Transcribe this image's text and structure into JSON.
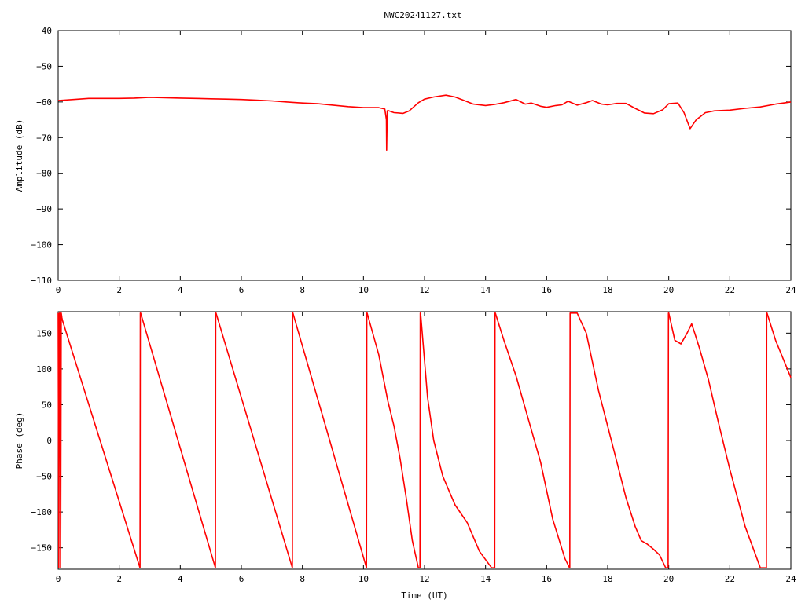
{
  "window": {
    "title": "NWC20241127.txt"
  },
  "chart_data": [
    {
      "type": "line",
      "title": "NWC20241127.txt",
      "xlabel": "",
      "ylabel": "Amplitude (dB)",
      "xlim": [
        0,
        24
      ],
      "ylim": [
        -110,
        -40
      ],
      "x_ticks": [
        0,
        2,
        4,
        6,
        8,
        10,
        12,
        14,
        16,
        18,
        20,
        22,
        24
      ],
      "y_ticks": [
        -40,
        -50,
        -60,
        -70,
        -80,
        -90,
        -100,
        -110
      ],
      "grid": false,
      "series_color": "#ff0000",
      "series": [
        {
          "x": [
            0,
            0.5,
            1,
            1.5,
            2,
            2.5,
            3,
            3.5,
            4,
            4.5,
            5,
            5.5,
            6,
            6.5,
            7,
            7.5,
            8,
            8.5,
            9,
            9.5,
            10,
            10.5,
            10.7,
            10.75,
            10.76,
            10.78,
            10.8,
            11,
            11.3,
            11.5,
            11.8,
            12,
            12.3,
            12.7,
            13,
            13.3,
            13.6,
            14,
            14.3,
            14.6,
            15,
            15.3,
            15.5,
            15.8,
            16,
            16.3,
            16.5,
            16.7,
            17,
            17.3,
            17.5,
            17.8,
            18,
            18.3,
            18.6,
            18.9,
            19.2,
            19.5,
            19.8,
            20,
            20.3,
            20.5,
            20.7,
            20.9,
            21.2,
            21.5,
            22,
            22.5,
            23,
            23.5,
            24
          ],
          "y": [
            -59.6,
            -59.3,
            -59.0,
            -59.0,
            -59.0,
            -58.9,
            -58.7,
            -58.8,
            -58.9,
            -59.0,
            -59.1,
            -59.2,
            -59.3,
            -59.5,
            -59.7,
            -60.0,
            -60.3,
            -60.5,
            -60.9,
            -61.3,
            -61.6,
            -61.6,
            -62.0,
            -65,
            -73.5,
            -62.5,
            -62.4,
            -63.0,
            -63.2,
            -62.5,
            -60.2,
            -59.2,
            -58.6,
            -58.1,
            -58.6,
            -59.6,
            -60.6,
            -61.0,
            -60.7,
            -60.2,
            -59.3,
            -60.6,
            -60.3,
            -61.2,
            -61.5,
            -61.0,
            -60.8,
            -59.8,
            -60.9,
            -60.2,
            -59.6,
            -60.6,
            -60.8,
            -60.4,
            -60.4,
            -61.8,
            -63.1,
            -63.3,
            -62.2,
            -60.5,
            -60.3,
            -63.0,
            -67.5,
            -65.0,
            -63.0,
            -62.5,
            -62.3,
            -61.8,
            -61.4,
            -60.6,
            -60.0
          ]
        }
      ]
    },
    {
      "type": "line",
      "title": "",
      "xlabel": "Time (UT)",
      "ylabel": "Phase (deg)",
      "xlim": [
        0,
        24
      ],
      "ylim": [
        -180,
        180
      ],
      "x_ticks": [
        0,
        2,
        4,
        6,
        8,
        10,
        12,
        14,
        16,
        18,
        20,
        22,
        24
      ],
      "y_ticks": [
        150,
        100,
        50,
        0,
        -50,
        -100,
        -150
      ],
      "grid": false,
      "series_color": "#ff0000",
      "series": [
        {
          "x": [
            0,
            0.02,
            0.04,
            0.06,
            0.08,
            0.1,
            0.12,
            0.14,
            2.68,
            2.69,
            2.7,
            5.15,
            5.16,
            5.17,
            7.67,
            7.68,
            7.69,
            10.1,
            10.11,
            10.12,
            10.5,
            10.8,
            11.0,
            11.2,
            11.4,
            11.6,
            11.8,
            11.85,
            11.86,
            11.87,
            12.1,
            12.3,
            12.6,
            13.0,
            13.4,
            13.8,
            14.2,
            14.3,
            14.31,
            14.32,
            14.6,
            15.0,
            15.4,
            15.8,
            16.2,
            16.6,
            16.75,
            16.76,
            16.77,
            17.0,
            17.3,
            17.7,
            18.0,
            18.3,
            18.6,
            18.9,
            19.1,
            19.3,
            19.5,
            19.7,
            19.9,
            19.98,
            19.99,
            20.0,
            20.2,
            20.4,
            20.6,
            20.75,
            20.85,
            21.0,
            21.3,
            21.6,
            22.0,
            22.5,
            23.0,
            23.2,
            23.21,
            23.22,
            23.5,
            24.0
          ],
          "y": [
            178,
            -178,
            178,
            178,
            -178,
            178,
            172,
            168,
            -178,
            178,
            178,
            -178,
            178,
            178,
            -178,
            178,
            178,
            -178,
            178,
            178,
            120,
            55,
            20,
            -25,
            -80,
            -140,
            -178,
            -178,
            178,
            178,
            60,
            0,
            -50,
            -90,
            -115,
            -155,
            -178,
            -178,
            178,
            178,
            140,
            90,
            30,
            -30,
            -110,
            -165,
            -178,
            -178,
            178,
            178,
            150,
            70,
            20,
            -30,
            -80,
            -120,
            -140,
            -145,
            -152,
            -160,
            -178,
            -178,
            178,
            178,
            140,
            135,
            150,
            163,
            150,
            130,
            85,
            30,
            -40,
            -120,
            -178,
            -178,
            178,
            178,
            140,
            88
          ]
        }
      ]
    }
  ]
}
